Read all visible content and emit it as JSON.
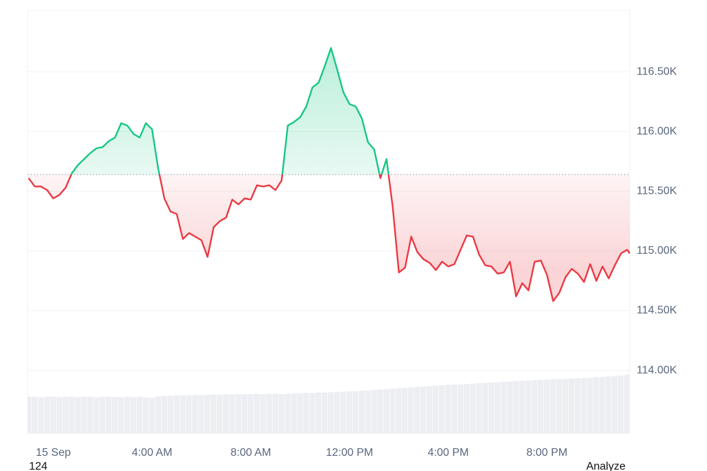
{
  "chart_data": {
    "type": "line",
    "x": [
      -1,
      -0.75,
      -0.5,
      -0.25,
      0,
      0.25,
      0.5,
      0.75,
      1,
      1.25,
      1.5,
      1.75,
      2,
      2.25,
      2.5,
      2.75,
      3,
      3.25,
      3.5,
      3.75,
      4,
      4.25,
      4.5,
      4.75,
      5,
      5.25,
      5.5,
      5.75,
      6,
      6.25,
      6.5,
      6.75,
      7,
      7.25,
      7.5,
      7.75,
      8,
      8.25,
      8.5,
      8.75,
      9,
      9.25,
      9.5,
      9.75,
      10,
      10.25,
      10.5,
      10.75,
      11,
      11.25,
      11.5,
      11.75,
      12,
      12.25,
      12.5,
      12.75,
      13,
      13.25,
      13.5,
      13.75,
      14,
      14.25,
      14.5,
      14.75,
      15,
      15.25,
      15.5,
      15.75,
      16,
      16.25,
      16.5,
      16.75,
      17,
      17.25,
      17.5,
      17.75,
      18,
      18.25,
      18.5,
      18.75,
      19,
      19.25,
      19.5,
      19.75,
      20,
      20.25,
      20.5,
      20.75,
      21,
      21.25,
      21.5,
      21.75,
      22,
      22.25,
      22.5,
      22.75,
      23,
      23.25,
      23.35
    ],
    "series": [
      {
        "color_up": "#16c784",
        "color_down": "#ea3943",
        "values": [
          115610,
          115540,
          115540,
          115510,
          115440,
          115470,
          115530,
          115650,
          115720,
          115770,
          115820,
          115860,
          115870,
          115920,
          115950,
          116070,
          116050,
          115980,
          115950,
          116070,
          116020,
          115690,
          115440,
          115330,
          115310,
          115100,
          115150,
          115120,
          115090,
          114950,
          115200,
          115250,
          115280,
          115430,
          115390,
          115440,
          115430,
          115550,
          115540,
          115550,
          115510,
          115590,
          116050,
          116080,
          116120,
          116210,
          116370,
          116410,
          116550,
          116700,
          116520,
          116330,
          116230,
          116210,
          116110,
          115910,
          115850,
          115610,
          115770,
          115370,
          114820,
          114860,
          115120,
          114990,
          114930,
          114900,
          114840,
          114910,
          114870,
          114890,
          115010,
          115130,
          115120,
          114970,
          114880,
          114870,
          114810,
          114820,
          114910,
          114620,
          114730,
          114670,
          114910,
          114920,
          114800,
          114580,
          114650,
          114780,
          114850,
          114810,
          114740,
          114890,
          114750,
          114870,
          114770,
          114880,
          114980,
          115010,
          114980
        ]
      },
      {
        "axis": "y2",
        "color": "#eceef2",
        "values": [
          86,
          86,
          85,
          86,
          86,
          85,
          86,
          86,
          85,
          86,
          86,
          85,
          86,
          86,
          85,
          85,
          86,
          85,
          86,
          84,
          83,
          87,
          88,
          88,
          89,
          89,
          90,
          90,
          90,
          91,
          91,
          91,
          92,
          91,
          92,
          92,
          92,
          93,
          92,
          93,
          93,
          92,
          93,
          94,
          94,
          95,
          95,
          96,
          96,
          97,
          97,
          98,
          99,
          99,
          100,
          101,
          102,
          103,
          104,
          105,
          106,
          107,
          108,
          109,
          110,
          111,
          112,
          113,
          114,
          115,
          115,
          116,
          117,
          118,
          119,
          120,
          120,
          121,
          122,
          123,
          124,
          124,
          125,
          126,
          126,
          127,
          128,
          128,
          129,
          130,
          130,
          131,
          132,
          133,
          134,
          135,
          136,
          137,
          139
        ]
      }
    ],
    "baseline": 115640,
    "xlim": [
      -1.04,
      23.35
    ],
    "xticks": [
      {
        "value": 0,
        "label": "15 Sep"
      },
      {
        "value": 4,
        "label": "4:00 AM"
      },
      {
        "value": 8,
        "label": "8:00 AM"
      },
      {
        "value": 12,
        "label": "12:00 PM"
      },
      {
        "value": 16,
        "label": "4:00 PM"
      },
      {
        "value": 20,
        "label": "8:00 PM"
      }
    ],
    "ylim": [
      113475,
      117015
    ],
    "yticks": [
      {
        "value": 114000,
        "label": "114.00K"
      },
      {
        "value": 114500,
        "label": "114.50K"
      },
      {
        "value": 115000,
        "label": "115.00K"
      },
      {
        "value": 115500,
        "label": "115.50K"
      },
      {
        "value": 116000,
        "label": "116.00K"
      },
      {
        "value": 116500,
        "label": "116.50K"
      }
    ],
    "y2lim": [
      0,
      1000
    ],
    "grid": true
  },
  "footer": {
    "left": "124",
    "right": "Analyze"
  }
}
